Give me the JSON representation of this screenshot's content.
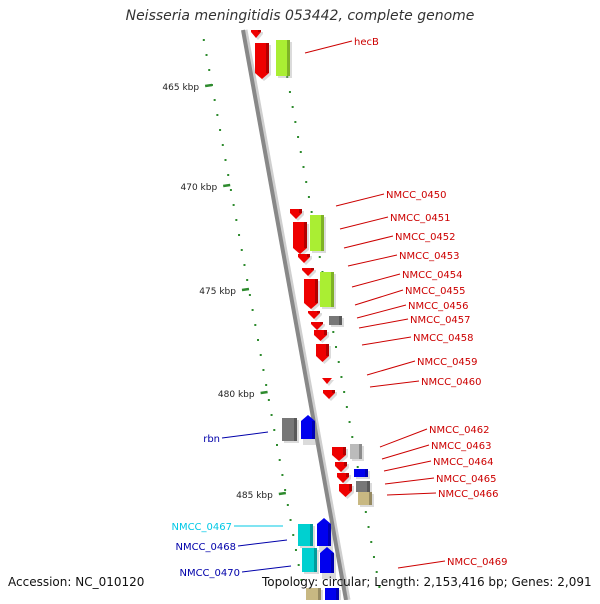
{
  "title": "Neisseria meningitidis 053442, complete genome",
  "footer": {
    "accession": "Accession: NC_010120",
    "summary": "Topology: circular; Length: 2,153,416 bp; Genes: 2,091"
  },
  "axis_ticks": [
    {
      "label": "465 kbp"
    },
    {
      "label": "470 kbp"
    },
    {
      "label": "475 kbp"
    },
    {
      "label": "480 kbp"
    },
    {
      "label": "485 kbp"
    }
  ],
  "gene_labels": [
    {
      "name": "hecB",
      "color": "#cc0000"
    },
    {
      "name": "NMCC_0450",
      "color": "#cc0000"
    },
    {
      "name": "NMCC_0451",
      "color": "#cc0000"
    },
    {
      "name": "NMCC_0452",
      "color": "#cc0000"
    },
    {
      "name": "NMCC_0453",
      "color": "#cc0000"
    },
    {
      "name": "NMCC_0454",
      "color": "#cc0000"
    },
    {
      "name": "NMCC_0455",
      "color": "#cc0000"
    },
    {
      "name": "NMCC_0456",
      "color": "#cc0000"
    },
    {
      "name": "NMCC_0457",
      "color": "#cc0000"
    },
    {
      "name": "NMCC_0458",
      "color": "#cc0000"
    },
    {
      "name": "NMCC_0459",
      "color": "#cc0000"
    },
    {
      "name": "NMCC_0460",
      "color": "#cc0000"
    },
    {
      "name": "NMCC_0462",
      "color": "#cc0000"
    },
    {
      "name": "NMCC_0463",
      "color": "#cc0000"
    },
    {
      "name": "NMCC_0464",
      "color": "#cc0000"
    },
    {
      "name": "NMCC_0465",
      "color": "#cc0000"
    },
    {
      "name": "NMCC_0466",
      "color": "#cc0000"
    },
    {
      "name": "NMCC_0469",
      "color": "#cc0000"
    },
    {
      "name": "rbn",
      "color": "#0000aa"
    },
    {
      "name": "NMCC_0467",
      "color": "#00c8e6"
    },
    {
      "name": "NMCC_0468",
      "color": "#0000aa"
    },
    {
      "name": "NMCC_0470",
      "color": "#0000aa"
    }
  ],
  "colors": {
    "backbone": "#888888",
    "gc_dots": "#2e8b2e",
    "gene_red": "#ee0000",
    "gene_lime": "#aaee33",
    "gene_gray": "#777777",
    "gene_blue": "#0000ee",
    "gene_cyan": "#00d0d0",
    "gene_tan": "#c8b882"
  }
}
